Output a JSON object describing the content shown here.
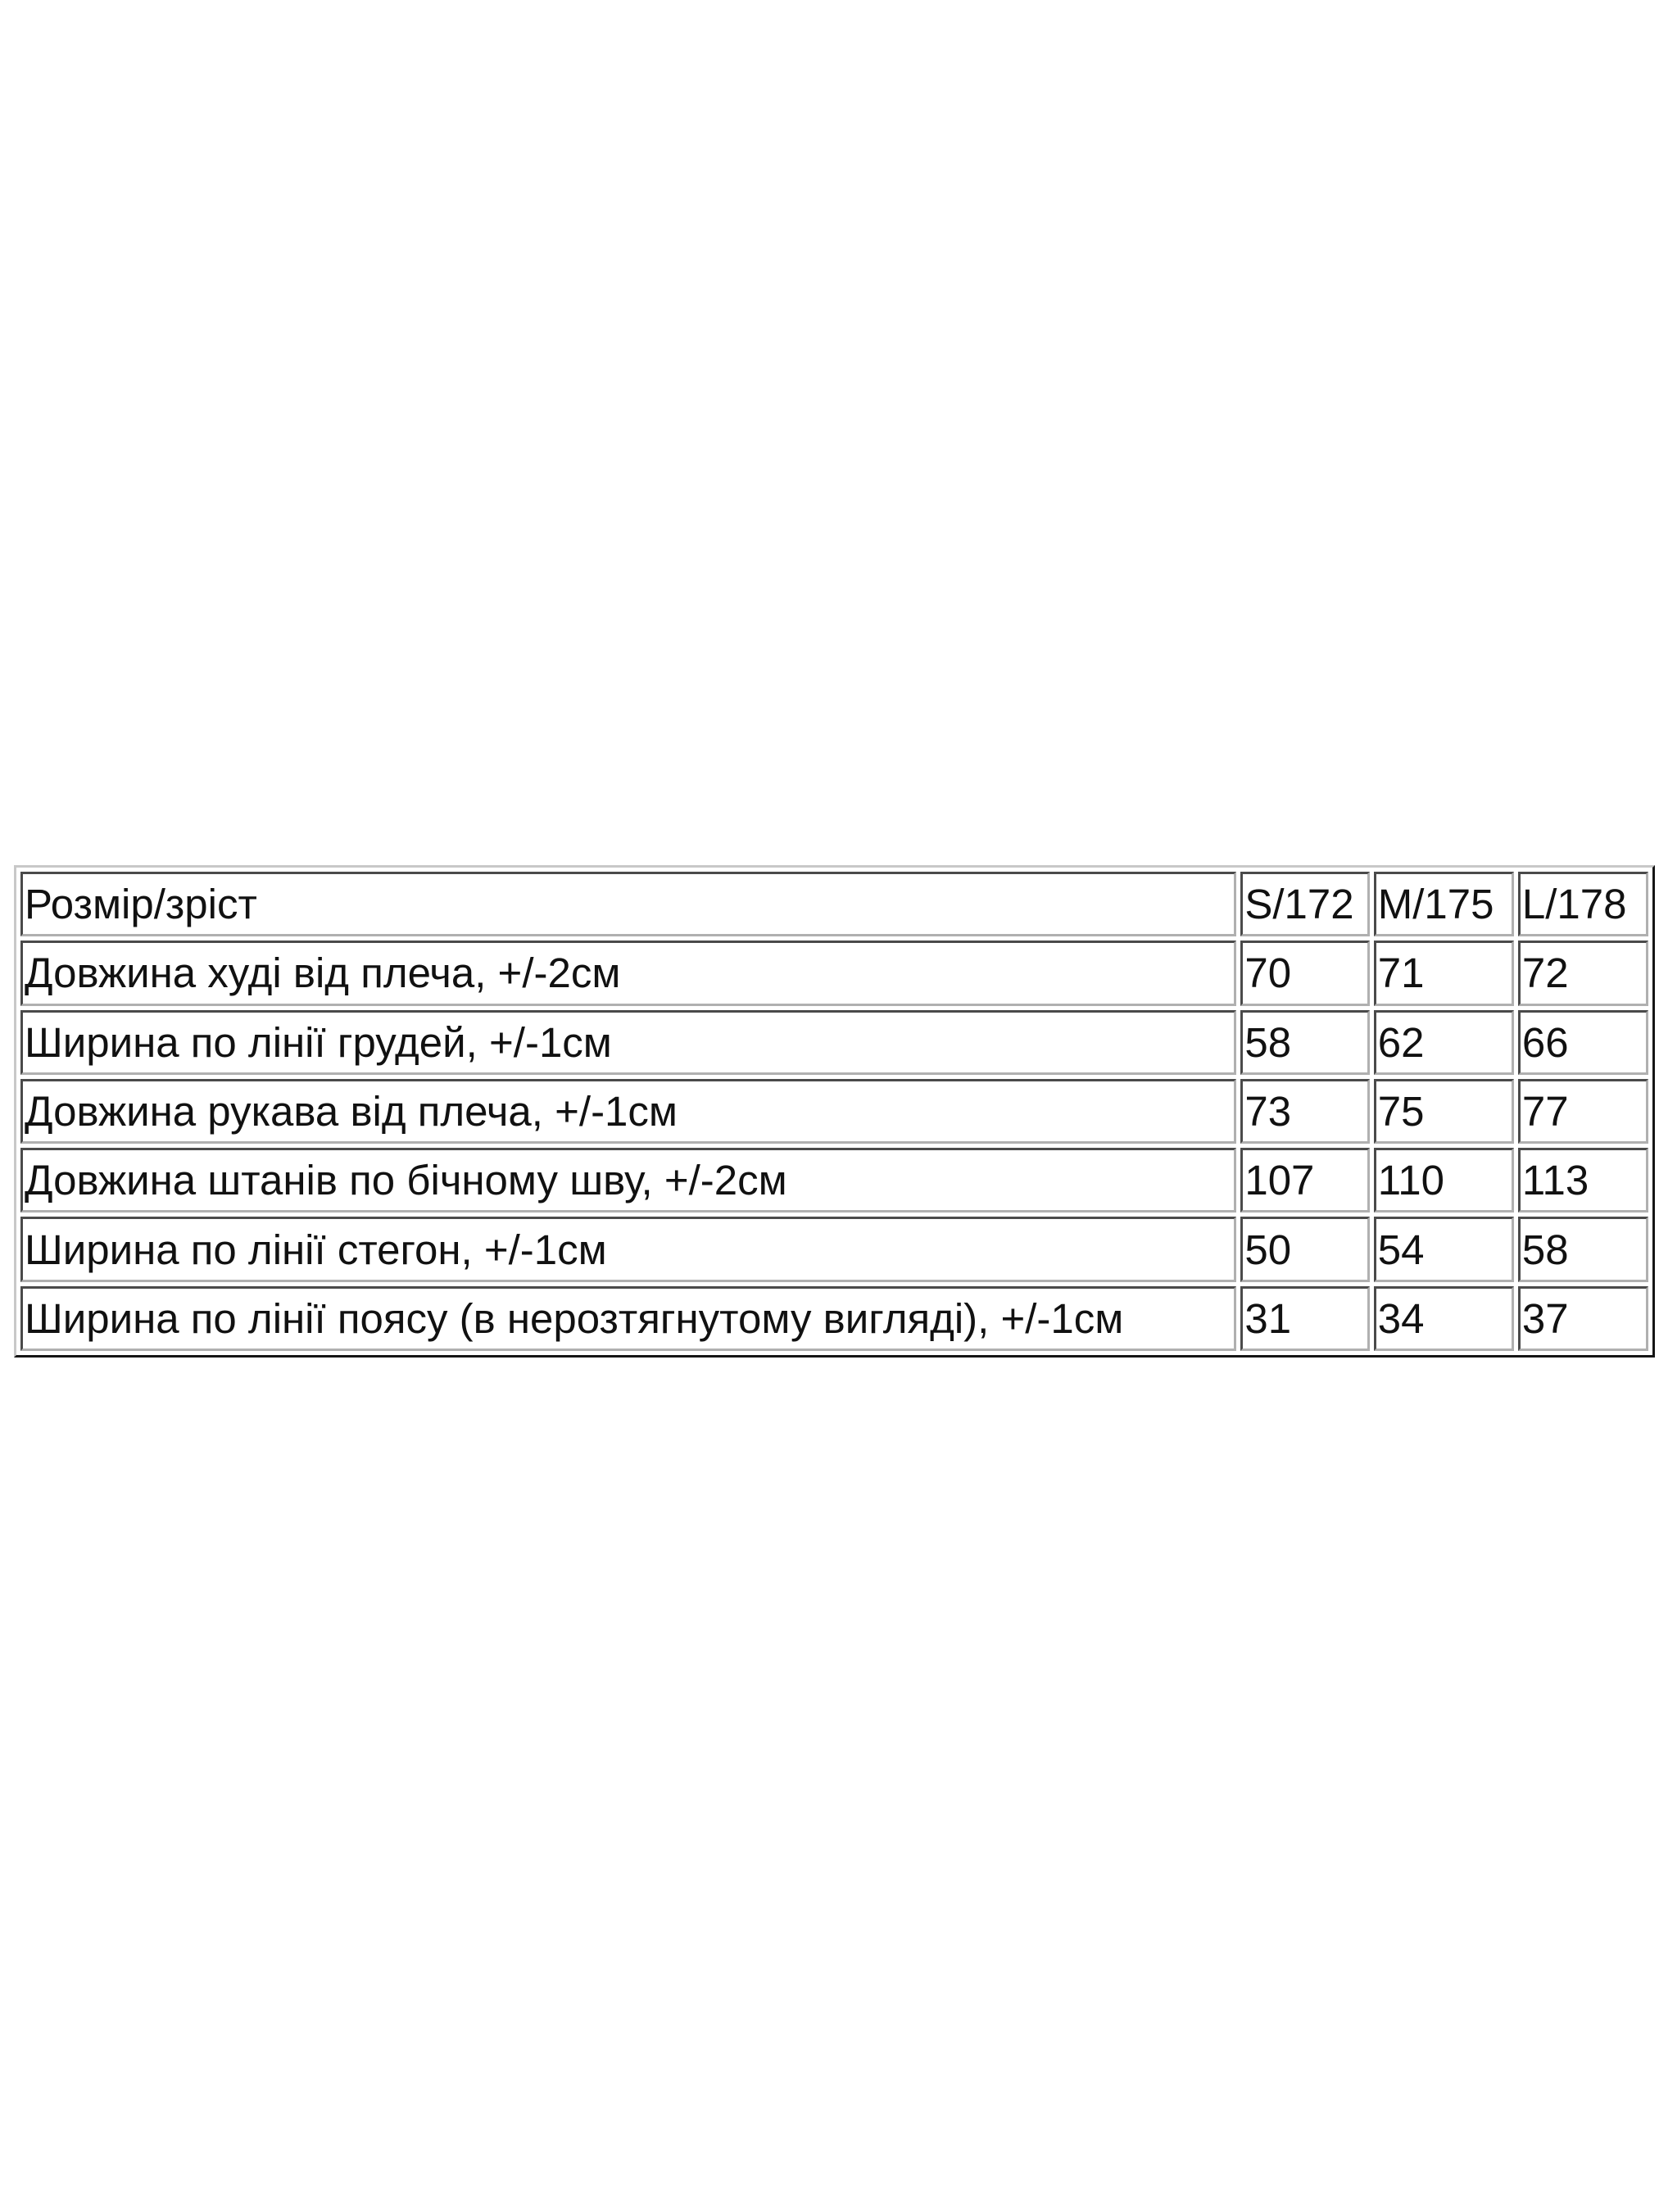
{
  "table": {
    "header": [
      "Розмір/зріст",
      "S/172",
      "M/175",
      "L/178"
    ],
    "rows": [
      [
        "Довжина худі від плеча, +/-2см",
        "70",
        "71",
        "72"
      ],
      [
        "Ширина по лінії грудей, +/-1см",
        "58",
        "62",
        "66"
      ],
      [
        "Довжина рукава від плеча, +/-1см",
        "73",
        "75",
        "77"
      ],
      [
        "Довжина штанів по бічному шву, +/-2см",
        "107",
        "110",
        "113"
      ],
      [
        "Ширина по лінії стегон, +/-1см",
        "50",
        "54",
        "58"
      ],
      [
        "Ширина по лінії поясу (в нерозтягнутому вигляді), +/-1см",
        "31",
        "34",
        "37"
      ]
    ]
  }
}
